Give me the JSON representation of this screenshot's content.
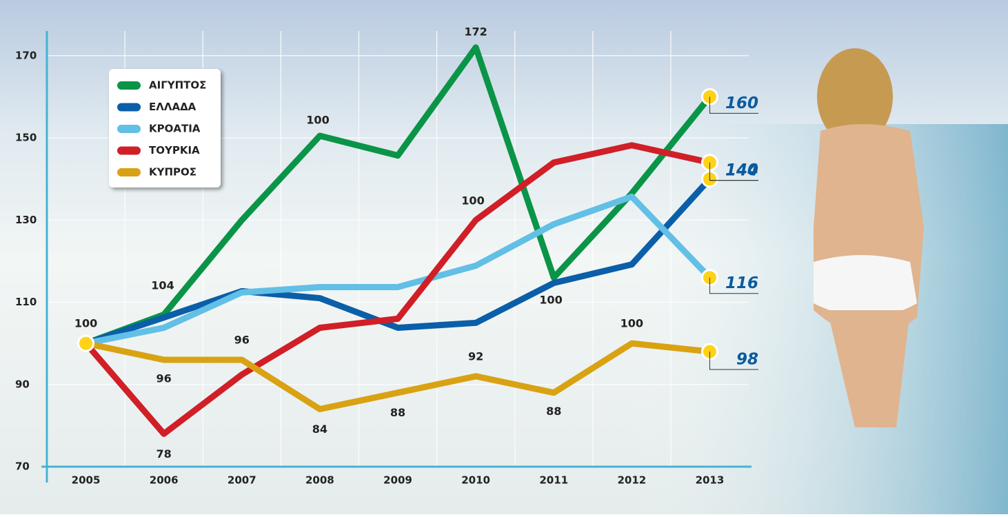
{
  "chart_data": {
    "type": "line",
    "categories": [
      "2005",
      "2006",
      "2007",
      "2008",
      "2009",
      "2010",
      "2011",
      "2012",
      "2013"
    ],
    "series": [
      {
        "name": "ΑΙΓΥΠΤΟΣ",
        "color": "#0a9447",
        "values": [
          100,
          107,
          130,
          150.5,
          145.7,
          172,
          116,
          136.5,
          160
        ]
      },
      {
        "name": "ΕΛΛΑΔΑ",
        "color": "#0b5ea8",
        "values": [
          100,
          106.3,
          112.7,
          111,
          103.8,
          105,
          114.7,
          119.2,
          140
        ]
      },
      {
        "name": "ΚΡΟΑΤΙΑ",
        "color": "#62bfe5",
        "values": [
          100,
          103.8,
          112.4,
          113.7,
          113.7,
          118.9,
          129,
          135.7,
          116
        ]
      },
      {
        "name": "ΤΟΥΡΚΙΑ",
        "color": "#d01f27",
        "values": [
          100,
          78,
          92.4,
          103.8,
          106,
          130,
          144,
          148.2,
          144
        ]
      },
      {
        "name": "ΚΥΠΡΟΣ",
        "color": "#d9a213",
        "values": [
          100,
          96,
          96,
          84,
          88,
          92,
          88,
          100,
          98
        ]
      }
    ],
    "annotations": [
      "104",
      "100",
      "100",
      "100"
    ],
    "ylim": [
      70,
      176
    ],
    "yticks": [
      70,
      90,
      110,
      130,
      150,
      170
    ],
    "grid": true
  }
}
